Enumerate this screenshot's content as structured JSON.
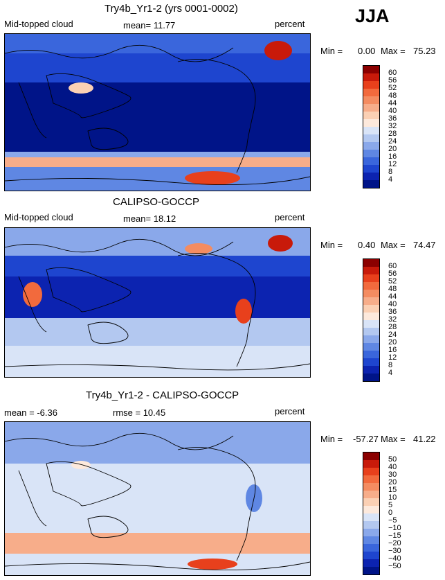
{
  "season": "JJA",
  "chart_data": [
    {
      "type": "heatmap",
      "title": "Try4b_Yr1-2 (yrs 0001-0002)",
      "variable": "Mid-topped cloud",
      "mean_text": "mean=  11.77",
      "units": "percent",
      "min_label": "Min =",
      "min_value": "0.00",
      "max_label": "Max =",
      "max_value": "75.23",
      "levels": [
        "60",
        "56",
        "52",
        "48",
        "44",
        "40",
        "36",
        "32",
        "28",
        "24",
        "20",
        "16",
        "12",
        "8",
        "4"
      ],
      "colors": [
        "#8b0000",
        "#c81a0a",
        "#e8401c",
        "#f26a3d",
        "#f48c61",
        "#f7ad8a",
        "#fbd0b4",
        "#fde9dc",
        "#d9e4f7",
        "#b3c8f0",
        "#8aa8ea",
        "#5f87e3",
        "#3a66dc",
        "#1e45cf",
        "#0c23b0",
        "#001488"
      ]
    },
    {
      "type": "heatmap",
      "title": "CALIPSO-GOCCP",
      "variable": "Mid-topped cloud",
      "mean_text": "mean=  18.12",
      "units": "percent",
      "min_label": "Min =",
      "min_value": "0.40",
      "max_label": "Max =",
      "max_value": "74.47",
      "levels": [
        "60",
        "56",
        "52",
        "48",
        "44",
        "40",
        "36",
        "32",
        "28",
        "24",
        "20",
        "16",
        "12",
        "8",
        "4"
      ],
      "colors": [
        "#8b0000",
        "#c81a0a",
        "#e8401c",
        "#f26a3d",
        "#f48c61",
        "#f7ad8a",
        "#fbd0b4",
        "#fde9dc",
        "#d9e4f7",
        "#b3c8f0",
        "#8aa8ea",
        "#5f87e3",
        "#3a66dc",
        "#1e45cf",
        "#0c23b0",
        "#001488"
      ]
    },
    {
      "type": "heatmap",
      "title": "Try4b_Yr1-2 - CALIPSO-GOCCP",
      "mean_text": "mean =  -6.36",
      "rmse_text": "rmse =  10.45",
      "units": "percent",
      "min_label": "Min =",
      "min_value": "-57.27",
      "max_label": "Max =",
      "max_value": "41.22",
      "levels": [
        "50",
        "40",
        "30",
        "20",
        "15",
        "10",
        "5",
        "0",
        "−5",
        "−10",
        "−15",
        "−20",
        "−30",
        "−40",
        "−50"
      ],
      "colors": [
        "#8b0000",
        "#c81a0a",
        "#e8401c",
        "#f26a3d",
        "#f48c61",
        "#f7ad8a",
        "#fbd0b4",
        "#fde9dc",
        "#d9e4f7",
        "#b3c8f0",
        "#8aa8ea",
        "#5f87e3",
        "#3a66dc",
        "#1e45cf",
        "#0c23b0",
        "#001488"
      ]
    }
  ]
}
